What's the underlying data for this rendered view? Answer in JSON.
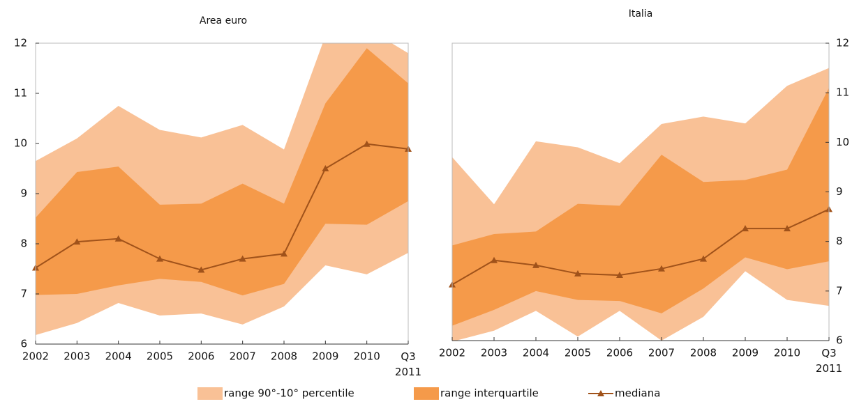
{
  "chart_data": [
    {
      "type": "band-line",
      "title": "Area euro",
      "categories": [
        "2002",
        "2003",
        "2004",
        "2005",
        "2006",
        "2007",
        "2008",
        "2009",
        "2010",
        "Q3 2011"
      ],
      "ylim": [
        6,
        12
      ],
      "yticks": [
        6,
        7,
        8,
        9,
        10,
        11,
        12
      ],
      "y_axis_side": "left",
      "series": [
        {
          "name": "range 90°-10° percentile",
          "color": "#f9c196",
          "upper": [
            9.65,
            10.1,
            10.75,
            10.27,
            10.12,
            10.37,
            9.88,
            12.15,
            12.3,
            11.8
          ],
          "lower": [
            6.18,
            6.42,
            6.82,
            6.57,
            6.61,
            6.39,
            6.75,
            7.57,
            7.39,
            7.82
          ]
        },
        {
          "name": "range interquartile",
          "color": "#f59a4a",
          "upper": [
            8.52,
            9.43,
            9.54,
            8.78,
            8.8,
            9.2,
            8.8,
            10.8,
            11.9,
            11.2
          ],
          "lower": [
            6.98,
            7.0,
            7.17,
            7.3,
            7.24,
            6.97,
            7.2,
            8.4,
            8.38,
            8.85
          ]
        },
        {
          "name": "mediana",
          "color": "#a0521a",
          "values": [
            7.52,
            8.04,
            8.1,
            7.7,
            7.48,
            7.7,
            7.8,
            9.5,
            9.99,
            9.89
          ]
        }
      ]
    },
    {
      "type": "band-line",
      "title": "Italia",
      "categories": [
        "2002",
        "2003",
        "2004",
        "2005",
        "2006",
        "2007",
        "2008",
        "2009",
        "2010",
        "Q3 2011"
      ],
      "ylim": [
        6,
        12
      ],
      "yticks": [
        6,
        7,
        8,
        9,
        10,
        11,
        12
      ],
      "y_axis_side": "right",
      "series": [
        {
          "color": "#f9c196",
          "upper": [
            9.7,
            8.75,
            10.02,
            9.9,
            9.58,
            10.37,
            10.52,
            10.38,
            11.14,
            11.5
          ],
          "lower": [
            5.98,
            6.2,
            6.6,
            6.08,
            6.6,
            6.0,
            6.48,
            7.4,
            6.82,
            6.7
          ]
        },
        {
          "color": "#f59a4a",
          "upper": [
            7.92,
            8.15,
            8.2,
            8.76,
            8.72,
            9.75,
            9.2,
            9.24,
            9.45,
            11.1
          ],
          "lower": [
            6.3,
            6.62,
            7.0,
            6.82,
            6.8,
            6.55,
            7.05,
            7.68,
            7.44,
            7.6
          ]
        },
        {
          "color": "#a0521a",
          "values": [
            7.13,
            7.62,
            7.52,
            7.35,
            7.32,
            7.45,
            7.65,
            8.26,
            8.26,
            8.65
          ]
        }
      ]
    }
  ]
}
